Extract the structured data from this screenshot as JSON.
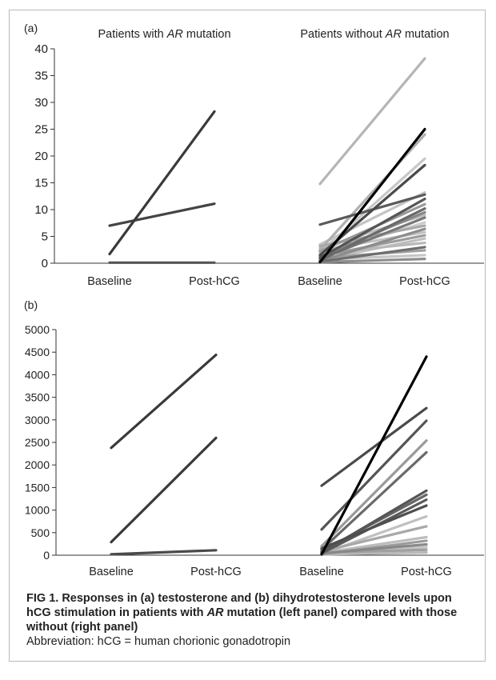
{
  "caption": {
    "label": "FIG 1.",
    "text": "Responses in (a) testosterone and (b) dihydrotestosterone levels upon hCG stimulation in patients with AR mutation (left panel) compared with those without (right panel)",
    "abbreviation": "Abbreviation: hCG = human chorionic gonadotropin"
  },
  "chart_data": [
    {
      "type": "line",
      "panel_label": "(a)",
      "categories": [
        "Baseline",
        "Post-hCG"
      ],
      "ylim": [
        0,
        40
      ],
      "yticks": [
        0,
        5,
        10,
        15,
        20,
        25,
        30,
        35,
        40
      ],
      "grid": false,
      "groups": [
        {
          "title": "Patients with AR mutation",
          "series": [
            {
              "values": [
                1.7,
                28.3
              ],
              "color": "#3a3a3a"
            },
            {
              "values": [
                7.0,
                11.1
              ],
              "color": "#444444"
            },
            {
              "values": [
                0.1,
                0.1
              ],
              "color": "#555555"
            }
          ]
        },
        {
          "title": "Patients without AR mutation",
          "series": [
            {
              "values": [
                14.8,
                38.2
              ],
              "color": "#b5b5b5"
            },
            {
              "values": [
                0.2,
                25.0
              ],
              "color": "#000000"
            },
            {
              "values": [
                2.5,
                24.0
              ],
              "color": "#b0b0b0"
            },
            {
              "values": [
                2.0,
                19.5
              ],
              "color": "#c8c8c8"
            },
            {
              "values": [
                1.5,
                18.3
              ],
              "color": "#4a4a4a"
            },
            {
              "values": [
                7.2,
                12.8
              ],
              "color": "#5a5a5a"
            },
            {
              "values": [
                3.5,
                13.2
              ],
              "color": "#c4c4c4"
            },
            {
              "values": [
                1.0,
                12.0
              ],
              "color": "#555555"
            },
            {
              "values": [
                2.2,
                11.0
              ],
              "color": "#9a9a9a"
            },
            {
              "values": [
                0.5,
                10.2
              ],
              "color": "#6a6a6a"
            },
            {
              "values": [
                1.2,
                9.5
              ],
              "color": "#888888"
            },
            {
              "values": [
                2.8,
                9.0
              ],
              "color": "#bcbcbc"
            },
            {
              "values": [
                0.8,
                8.5
              ],
              "color": "#777777"
            },
            {
              "values": [
                1.6,
                7.6
              ],
              "color": "#cccccc"
            },
            {
              "values": [
                3.2,
                7.0
              ],
              "color": "#a8a8a8"
            },
            {
              "values": [
                0.4,
                6.4
              ],
              "color": "#8c8c8c"
            },
            {
              "values": [
                2.4,
                5.8
              ],
              "color": "#c0c0c0"
            },
            {
              "values": [
                1.3,
                5.2
              ],
              "color": "#9c9c9c"
            },
            {
              "values": [
                0.6,
                4.6
              ],
              "color": "#bfbfbf"
            },
            {
              "values": [
                1.8,
                3.8
              ],
              "color": "#b8b8b8"
            },
            {
              "values": [
                0.3,
                3.0
              ],
              "color": "#6e6e6e"
            },
            {
              "values": [
                1.0,
                2.4
              ],
              "color": "#a0a0a0"
            },
            {
              "values": [
                0.7,
                1.5
              ],
              "color": "#c6c6c6"
            },
            {
              "values": [
                0.2,
                0.8
              ],
              "color": "#8e8e8e"
            }
          ]
        }
      ]
    },
    {
      "type": "line",
      "panel_label": "(b)",
      "categories": [
        "Baseline",
        "Post-hCG"
      ],
      "ylim": [
        0,
        5000
      ],
      "yticks": [
        0,
        500,
        1000,
        1500,
        2000,
        2500,
        3000,
        3500,
        4000,
        4500,
        5000
      ],
      "grid": false,
      "groups": [
        {
          "title": "",
          "series": [
            {
              "values": [
                2380,
                4440
              ],
              "color": "#3a3a3a"
            },
            {
              "values": [
                290,
                2600
              ],
              "color": "#3a3a3a"
            },
            {
              "values": [
                20,
                110
              ],
              "color": "#4a4a4a"
            }
          ]
        },
        {
          "title": "",
          "series": [
            {
              "values": [
                20,
                4400
              ],
              "color": "#000000"
            },
            {
              "values": [
                1540,
                3260
              ],
              "color": "#4a4a4a"
            },
            {
              "values": [
                570,
                2980
              ],
              "color": "#555555"
            },
            {
              "values": [
                200,
                2540
              ],
              "color": "#9a9a9a"
            },
            {
              "values": [
                120,
                2280
              ],
              "color": "#6a6a6a"
            },
            {
              "values": [
                60,
                1430
              ],
              "color": "#555555"
            },
            {
              "values": [
                90,
                1340
              ],
              "color": "#666666"
            },
            {
              "values": [
                40,
                1230
              ],
              "color": "#5a5a5a"
            },
            {
              "values": [
                150,
                1100
              ],
              "color": "#4e4e4e"
            },
            {
              "values": [
                30,
                860
              ],
              "color": "#c0c0c0"
            },
            {
              "values": [
                80,
                640
              ],
              "color": "#a8a8a8"
            },
            {
              "values": [
                50,
                400
              ],
              "color": "#bcbcbc"
            },
            {
              "values": [
                20,
                320
              ],
              "color": "#9c9c9c"
            },
            {
              "values": [
                40,
                240
              ],
              "color": "#888888"
            },
            {
              "values": [
                10,
                180
              ],
              "color": "#c4c4c4"
            },
            {
              "values": [
                60,
                120
              ],
              "color": "#a0a0a0"
            },
            {
              "values": [
                20,
                60
              ],
              "color": "#b8b8b8"
            }
          ]
        }
      ]
    }
  ]
}
